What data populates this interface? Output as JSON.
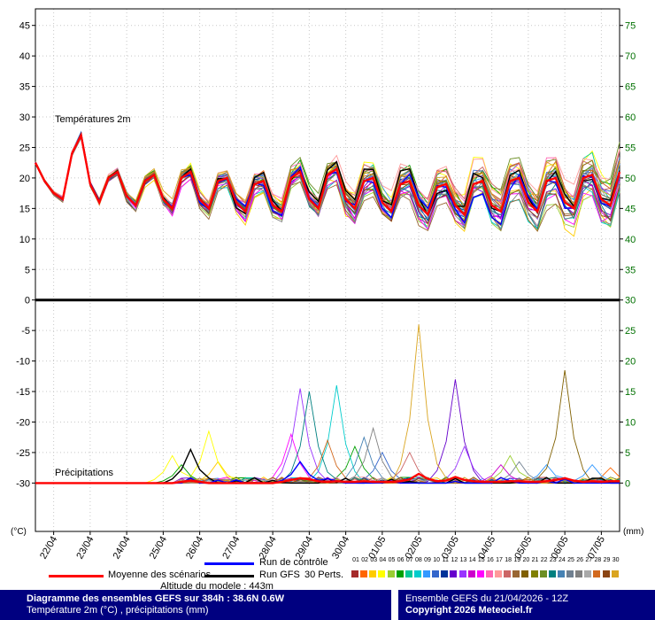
{
  "labels": {
    "altitude": "Altitude du modele : 443m"
  },
  "legend": {
    "mean_label": "Moyenne des scénarios",
    "control_label": "Run de contrôle",
    "gfs_label": "Run GFS",
    "perts_label": "30 Perts.",
    "member_numbers": [
      "01",
      "02",
      "03",
      "04",
      "05",
      "06",
      "07",
      "08",
      "09",
      "10",
      "11",
      "12",
      "13",
      "14",
      "15",
      "16",
      "17",
      "18",
      "19",
      "20",
      "21",
      "22",
      "23",
      "24",
      "25",
      "26",
      "27",
      "28",
      "29",
      "30"
    ]
  },
  "footer": {
    "title_line1": "Diagramme des ensembles GEFS sur 384h : 38.6N 0.6W",
    "title_line2": "Température 2m (°C) , précipitations (mm)",
    "right_line1": "Ensemble GEFS du 21/04/2026 - 12Z",
    "right_line2": "Copyright 2026 Meteociel.fr",
    "bar_color": "#000080"
  },
  "chart_data": {
    "type": "line",
    "title": "Diagramme des ensembles GEFS sur 384h : 38.6N 0.6W",
    "x": {
      "end_hour": 384,
      "step_hours": 6,
      "day_label_hours": [
        12,
        36,
        60,
        84,
        108,
        132,
        156,
        180,
        204,
        228,
        252,
        276,
        300,
        324,
        348,
        372
      ],
      "day_labels": [
        "22/04",
        "23/04",
        "24/04",
        "25/04",
        "26/04",
        "27/04",
        "28/04",
        "29/04",
        "30/04",
        "01/05",
        "02/05",
        "03/05",
        "04/05",
        "05/05",
        "06/05",
        "07/05"
      ]
    },
    "axes": {
      "yticks_left": [
        45,
        40,
        35,
        30,
        25,
        20,
        15,
        10,
        5,
        0,
        -5,
        -10,
        -15,
        -20,
        -25,
        -30
      ],
      "yticks_right": [
        75,
        70,
        65,
        60,
        55,
        50,
        45,
        40,
        35,
        30,
        25,
        20,
        15,
        10,
        5,
        0
      ],
      "left_unit": "(°C)",
      "right_unit": "(mm)",
      "temp_ylim": [
        0,
        47
      ],
      "precip_ylim_mm": [
        0,
        30
      ],
      "left_label_color": "#000000",
      "right_label_color": "#007000",
      "grid_color": "#c8c8c8"
    },
    "panels": [
      {
        "name": "temperature",
        "label": "Températures 2m"
      },
      {
        "name": "precipitation",
        "label": "Précipitations"
      }
    ],
    "members": {
      "count": 30,
      "colors": [
        "#a52a2a",
        "#ff6600",
        "#ffcc00",
        "#ffff00",
        "#9acd32",
        "#00a000",
        "#00c896",
        "#00cccc",
        "#3399ff",
        "#3366cc",
        "#003399",
        "#6600cc",
        "#9933ff",
        "#cc00cc",
        "#ff00ff",
        "#ff66b2",
        "#ff9999",
        "#cc6666",
        "#996633",
        "#806000",
        "#808000",
        "#6b8e23",
        "#008080",
        "#4682b4",
        "#708090",
        "#808080",
        "#a9a9a9",
        "#d2691e",
        "#8b4513",
        "#daa520"
      ]
    },
    "specials": {
      "mean": {
        "label": "Moyenne des scénarios",
        "color": "#ff0000"
      },
      "control": {
        "label": "Run de contrôle",
        "color": "#0000ff"
      },
      "gfs": {
        "label": "Run GFS",
        "color": "#000000"
      }
    },
    "series": {
      "mean_temp": [
        22.5,
        19.5,
        17.5,
        16.5,
        24,
        27,
        19,
        16,
        20,
        21,
        17,
        15.5,
        19.5,
        20.5,
        16.5,
        15,
        20,
        21,
        16.5,
        15,
        19.5,
        20,
        16,
        14.5,
        19,
        19.5,
        15.5,
        14.5,
        20,
        21,
        16.5,
        15,
        20.5,
        21.5,
        16.5,
        15,
        19.5,
        20,
        16,
        14.5,
        19,
        19.5,
        15.5,
        14,
        18.5,
        19,
        15.5,
        14,
        19,
        19.5,
        15.5,
        14.5,
        19.5,
        20,
        16,
        14.5,
        19.5,
        20,
        16,
        15,
        20,
        20.5,
        16.5,
        15.5,
        21
      ],
      "spread_temp": [
        0.3,
        0.4,
        0.5,
        0.6,
        0.8,
        0.9,
        1,
        1.1,
        1.2,
        1.3,
        1.4,
        1.5,
        1.6,
        1.7,
        1.8,
        1.9,
        2,
        2,
        2.1,
        2.1,
        2.2,
        2.2,
        2.3,
        2.3,
        2.4,
        2.4,
        2.5,
        2.5,
        2.6,
        2.6,
        2.7,
        2.7,
        2.8,
        2.8,
        2.9,
        2.9,
        3,
        3,
        3.1,
        3.1,
        3.2,
        3.2,
        3.3,
        3.3,
        3.4,
        3.4,
        3.5,
        3.5,
        3.6,
        3.6,
        3.7,
        3.7,
        3.8,
        3.8,
        3.9,
        3.9,
        4,
        4,
        4.1,
        4.1,
        4.2,
        4.2,
        4.3,
        4.3,
        4.4
      ],
      "mean_precip": [
        0,
        0,
        0,
        0,
        0,
        0,
        0,
        0,
        0,
        0,
        0,
        0,
        0,
        0,
        0,
        0,
        0.2,
        0.4,
        0.2,
        0,
        0,
        0,
        0,
        0,
        0,
        0,
        0,
        0.2,
        0.5,
        0.8,
        0.6,
        0.3,
        0.2,
        0.3,
        0.2,
        0.2,
        0.3,
        0.2,
        0.2,
        0.2,
        0.3,
        0.6,
        1.5,
        0.7,
        0.3,
        0.4,
        1,
        0.5,
        0.3,
        0.2,
        0.2,
        0.2,
        0.3,
        0.3,
        0.2,
        0.2,
        0.3,
        0.5,
        0.8,
        0.4,
        0.2,
        0.3,
        0.2,
        0.3,
        0.3
      ]
    },
    "precip_events": [
      {
        "series": "p04",
        "t": 90,
        "v": 4.5
      },
      {
        "series": "p06",
        "t": 96,
        "v": 3.0
      },
      {
        "series": "gfs",
        "t": 102,
        "v": 5.5
      },
      {
        "series": "p04",
        "t": 114,
        "v": 8.5
      },
      {
        "series": "p03",
        "t": 120,
        "v": 3.5
      },
      {
        "series": "p15",
        "t": 168,
        "v": 8.0
      },
      {
        "series": "p13",
        "t": 174,
        "v": 15.5
      },
      {
        "series": "ctl",
        "t": 174,
        "v": 3.5
      },
      {
        "series": "p23",
        "t": 180,
        "v": 15.0
      },
      {
        "series": "p28",
        "t": 192,
        "v": 7.0
      },
      {
        "series": "p08",
        "t": 198,
        "v": 16.0
      },
      {
        "series": "p06",
        "t": 210,
        "v": 6.0
      },
      {
        "series": "p24",
        "t": 216,
        "v": 7.5
      },
      {
        "series": "p26",
        "t": 222,
        "v": 9.0
      },
      {
        "series": "p10",
        "t": 228,
        "v": 5.0
      },
      {
        "series": "p18",
        "t": 246,
        "v": 5.0
      },
      {
        "series": "p30",
        "t": 252,
        "v": 26.0
      },
      {
        "series": "p12",
        "t": 276,
        "v": 17.0
      },
      {
        "series": "p13",
        "t": 282,
        "v": 6.0
      },
      {
        "series": "p14",
        "t": 306,
        "v": 3.0
      },
      {
        "series": "p05",
        "t": 312,
        "v": 4.5
      },
      {
        "series": "p25",
        "t": 318,
        "v": 3.5
      },
      {
        "series": "p09",
        "t": 336,
        "v": 3.0
      },
      {
        "series": "p20",
        "t": 342,
        "v": 6.0
      },
      {
        "series": "p20",
        "t": 348,
        "v": 18.5
      },
      {
        "series": "p09",
        "t": 366,
        "v": 3.0
      },
      {
        "series": "p02",
        "t": 378,
        "v": 2.5
      }
    ]
  }
}
